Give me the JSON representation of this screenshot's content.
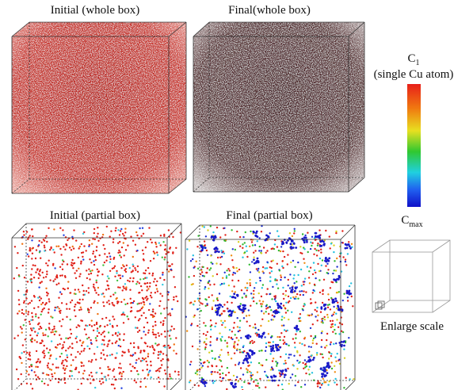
{
  "panels": [
    {
      "title": "Initial (whole box)"
    },
    {
      "title": "Final(whole box)"
    },
    {
      "title": "Initial (partial box)"
    },
    {
      "title": "Final (partial box)"
    }
  ],
  "colorbar": {
    "top_label": "C",
    "top_subscript": "1",
    "top_note": "(single Cu atom)",
    "bottom_label": "C",
    "bottom_subscript": "max"
  },
  "inset": {
    "caption": "Enlarge scale"
  }
}
